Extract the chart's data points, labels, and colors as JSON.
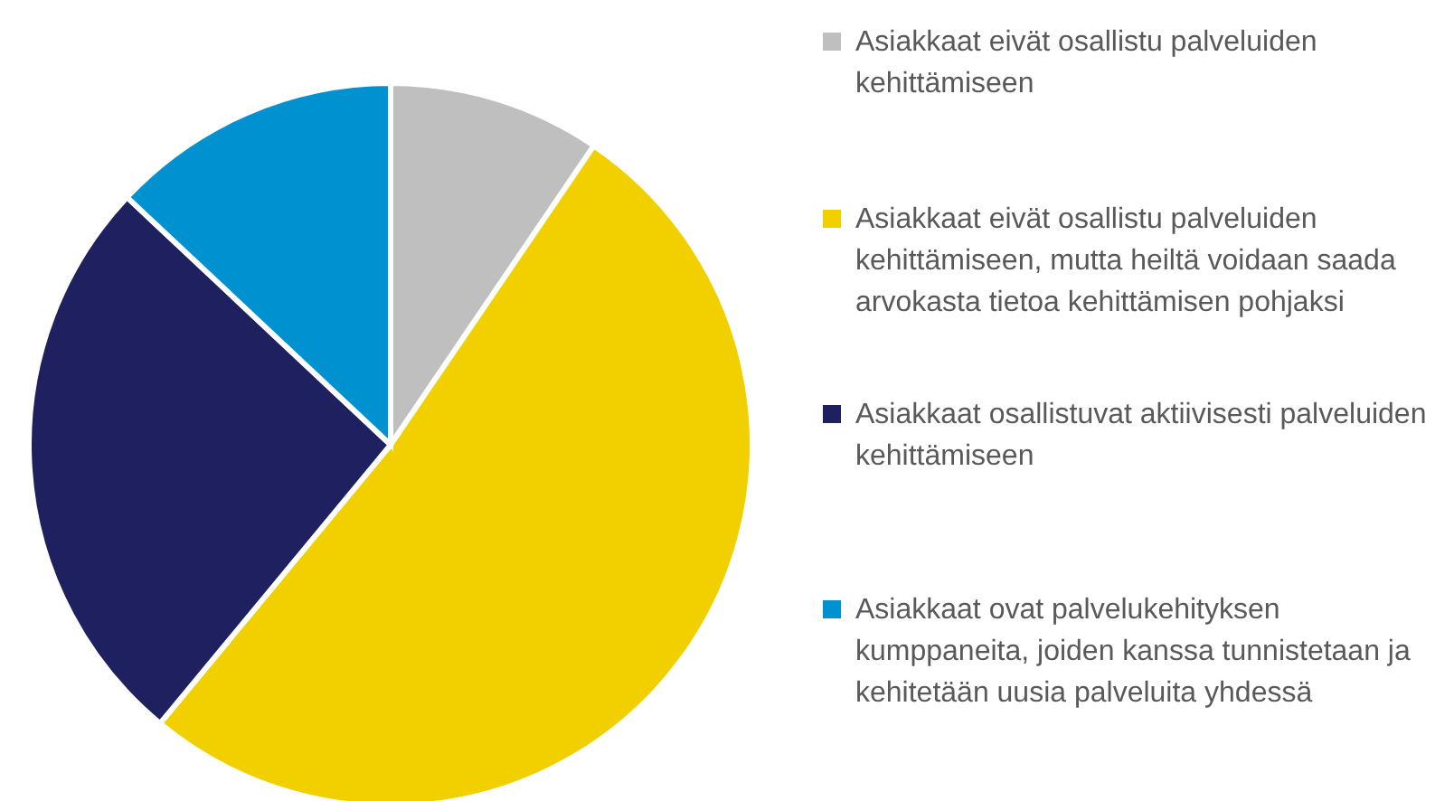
{
  "chart_data": {
    "type": "pie",
    "categories": [
      "Asiakkaat eivät osallistu palveluiden kehittämiseen",
      "Asiakkaat eivät osallistu palveluiden kehittämiseen, mutta heiltä voidaan saada arvokasta tietoa kehittämisen pohjaksi",
      "Asiakkaat osallistuvat aktiivisesti palveluiden kehittämiseen",
      "Asiakkaat ovat palvelukehityksen kumppaneita, joiden kanssa tunnistetaan ja kehitetään uusia palveluita yhdessä"
    ],
    "values": [
      9.5,
      51.5,
      26,
      13
    ],
    "colors": [
      "#bfbfbf",
      "#f2d000",
      "#1f2060",
      "#0091d0"
    ],
    "legend": "right"
  }
}
